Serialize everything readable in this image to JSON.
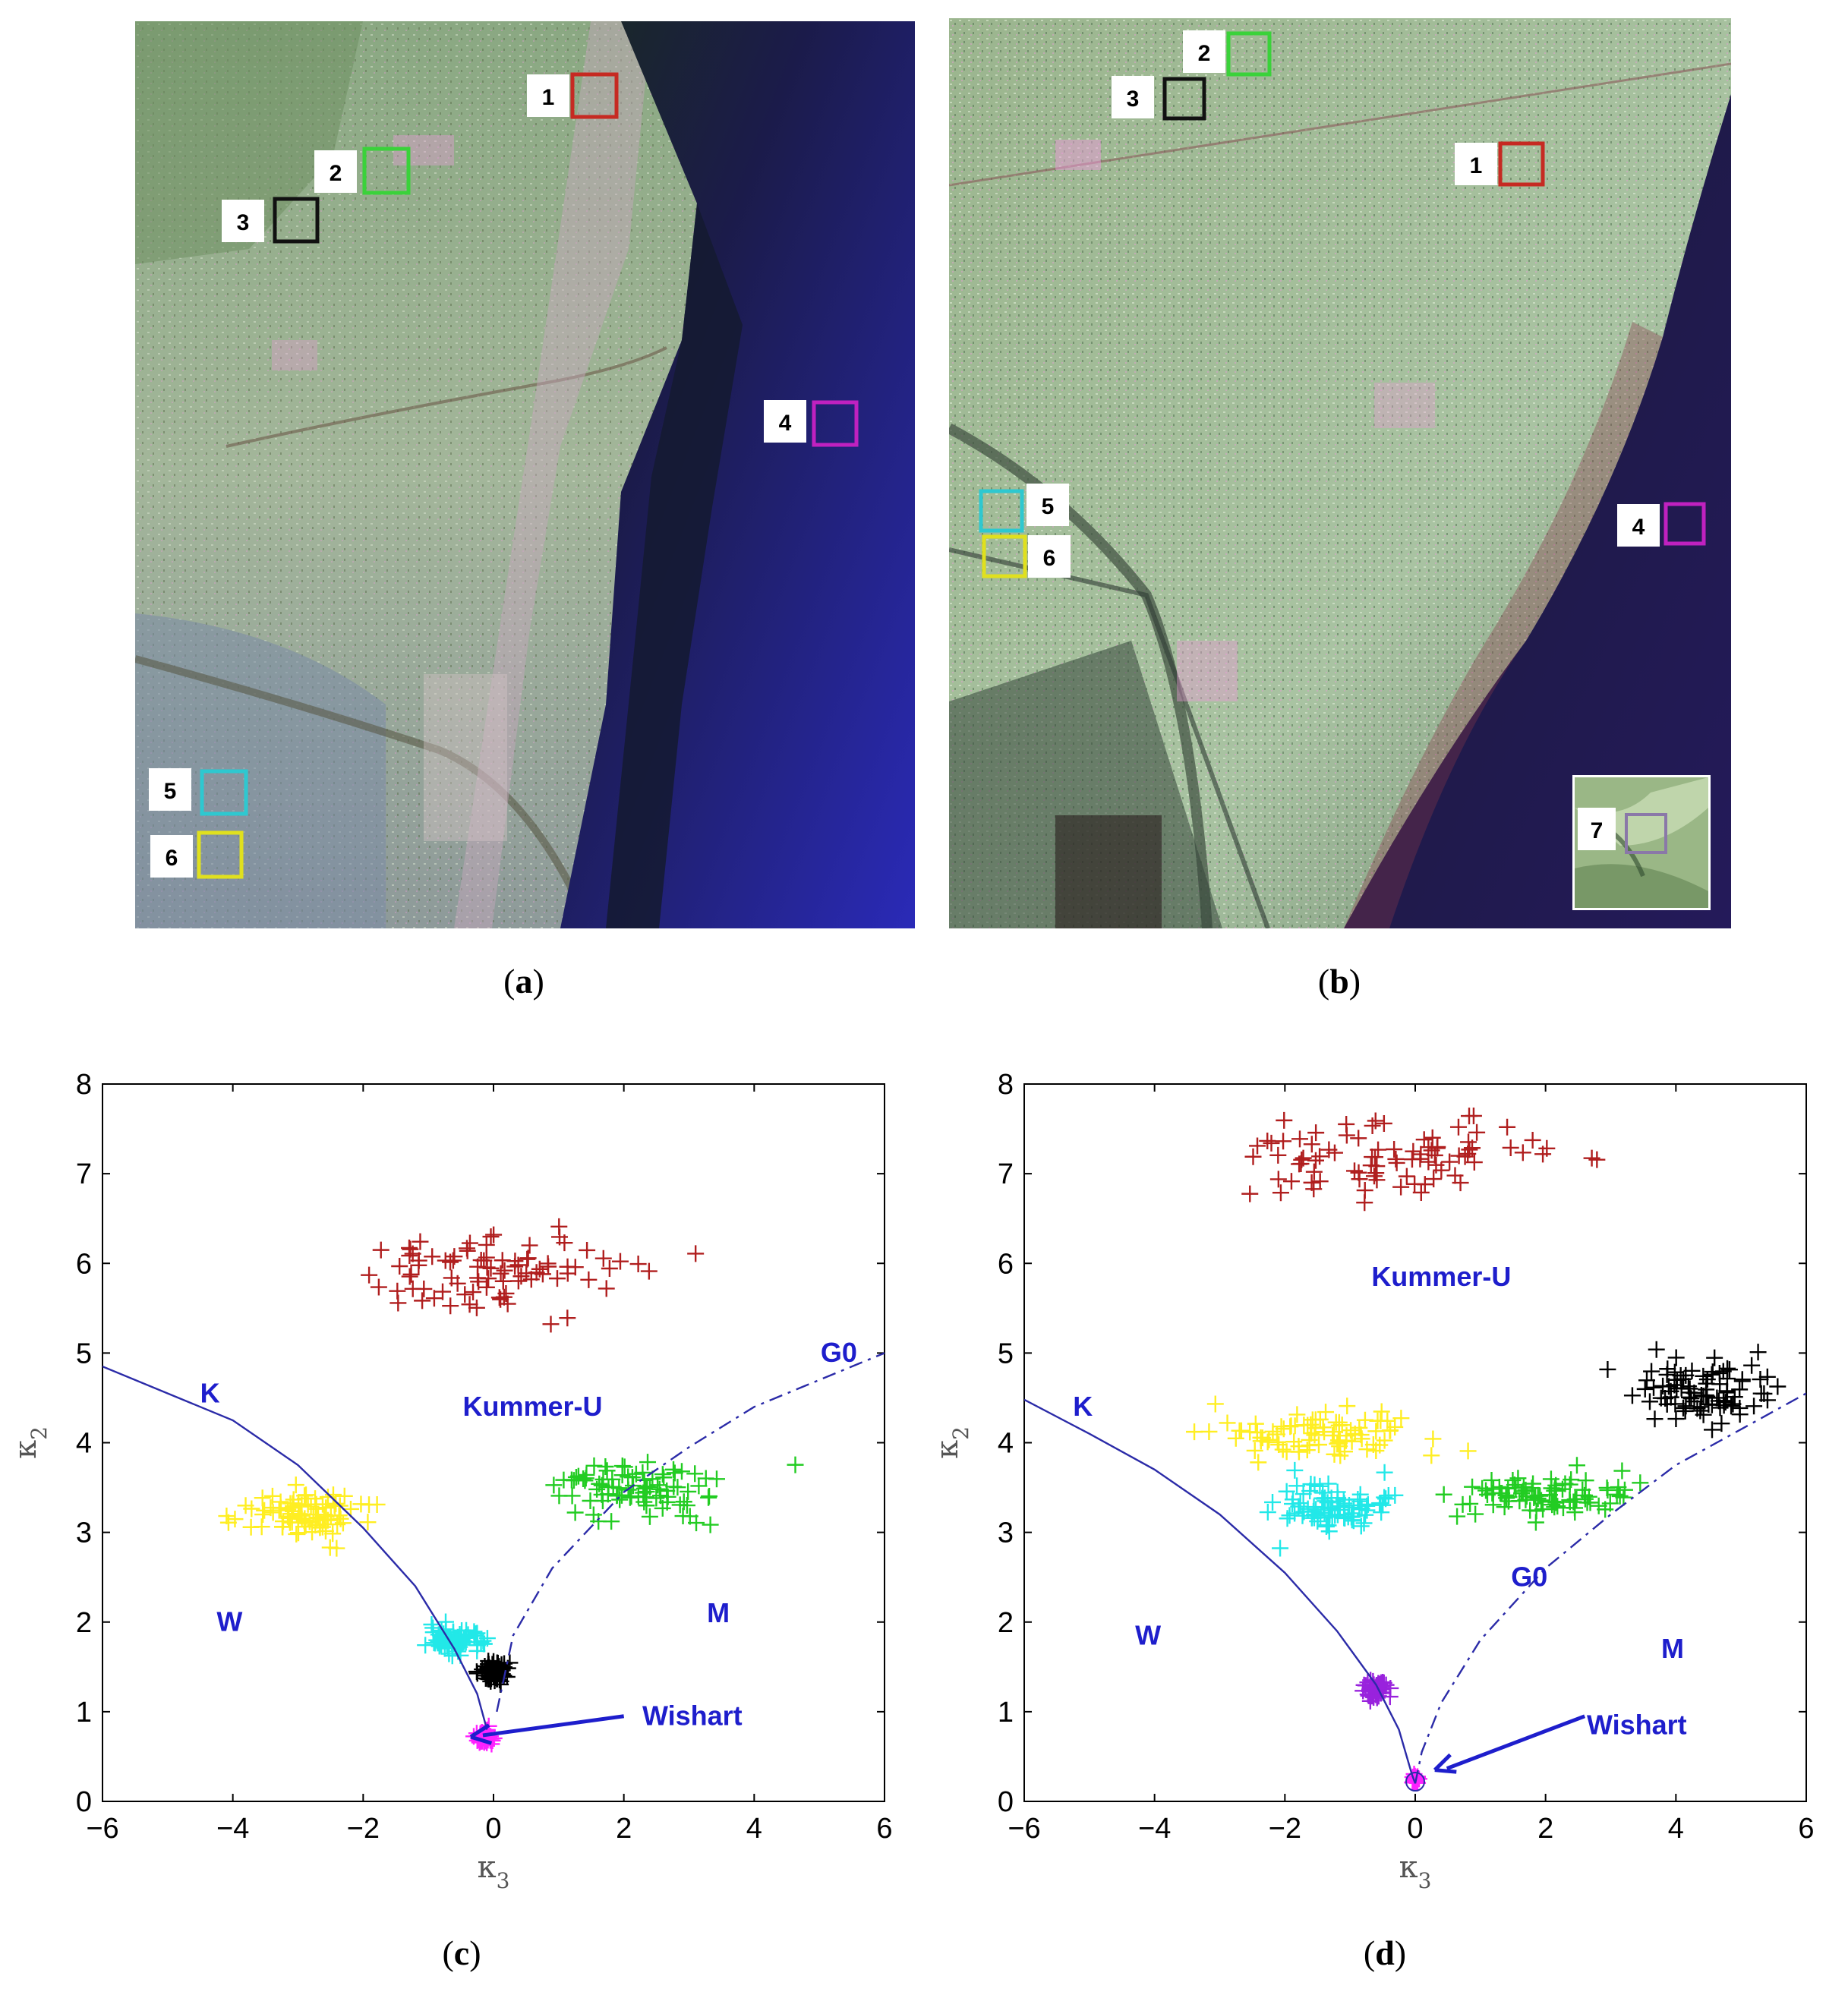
{
  "panels": {
    "a": {
      "caption": "a",
      "regions": [
        {
          "label": "1",
          "color": "#c62a22"
        },
        {
          "label": "2",
          "color": "#3ad23a"
        },
        {
          "label": "3",
          "color": "#111111"
        },
        {
          "label": "4",
          "color": "#c021c0"
        },
        {
          "label": "5",
          "color": "#2ec8d0"
        },
        {
          "label": "6",
          "color": "#e0e01e"
        }
      ]
    },
    "b": {
      "caption": "b",
      "regions": [
        {
          "label": "1",
          "color": "#c62a22"
        },
        {
          "label": "2",
          "color": "#3ad23a"
        },
        {
          "label": "3",
          "color": "#111111"
        },
        {
          "label": "4",
          "color": "#c021c0"
        },
        {
          "label": "5",
          "color": "#2ec8d0"
        },
        {
          "label": "6",
          "color": "#e0e01e"
        },
        {
          "label": "7",
          "color": "#8a78a8"
        }
      ]
    },
    "c": {
      "caption": "c"
    },
    "d": {
      "caption": "d"
    }
  },
  "chart_data": [
    {
      "type": "scatter",
      "panel": "c",
      "xlabel": "κ3",
      "ylabel": "κ2",
      "xlim": [
        -6,
        6
      ],
      "ylim": [
        0,
        8
      ],
      "xticks": [
        -6,
        -4,
        -2,
        0,
        2,
        4,
        6
      ],
      "yticks": [
        0,
        1,
        2,
        3,
        4,
        5,
        6,
        7,
        8
      ],
      "curve_labels": [
        "K",
        "G0",
        "Kummer-U",
        "W",
        "M",
        "Wishart"
      ],
      "clusters": [
        {
          "region": "1",
          "color": "#b01e1e",
          "center": [
            0.0,
            5.9
          ],
          "spread": [
            1.9,
            0.4
          ],
          "count": 90
        },
        {
          "region": "2",
          "color": "#22cc22",
          "center": [
            2.2,
            3.5
          ],
          "spread": [
            1.3,
            0.25
          ],
          "count": 90
        },
        {
          "region": "3",
          "color": "#000000",
          "center": [
            0.0,
            1.45
          ],
          "spread": [
            0.2,
            0.1
          ],
          "count": 70
        },
        {
          "region": "4",
          "color": "#ff22ff",
          "center": [
            -0.15,
            0.72
          ],
          "spread": [
            0.12,
            0.08
          ],
          "count": 50
        },
        {
          "region": "5",
          "color": "#22e8e8",
          "center": [
            -0.6,
            1.8
          ],
          "spread": [
            0.35,
            0.12
          ],
          "count": 80
        },
        {
          "region": "6",
          "color": "#ffee22",
          "center": [
            -2.9,
            3.2
          ],
          "spread": [
            0.9,
            0.22
          ],
          "count": 90
        }
      ]
    },
    {
      "type": "scatter",
      "panel": "d",
      "xlabel": "κ3",
      "ylabel": "κ2",
      "xlim": [
        -6,
        6
      ],
      "ylim": [
        0,
        8
      ],
      "xticks": [
        -6,
        -4,
        -2,
        0,
        2,
        4,
        6
      ],
      "yticks": [
        0,
        1,
        2,
        3,
        4,
        5,
        6,
        7,
        8
      ],
      "curve_labels": [
        "K",
        "G0",
        "Kummer-U",
        "W",
        "M",
        "Wishart"
      ],
      "clusters": [
        {
          "region": "1",
          "color": "#b01e1e",
          "center": [
            -0.5,
            7.2
          ],
          "spread": [
            2.2,
            0.35
          ],
          "count": 90
        },
        {
          "region": "2",
          "color": "#22cc22",
          "center": [
            2.0,
            3.4
          ],
          "spread": [
            1.3,
            0.22
          ],
          "count": 90
        },
        {
          "region": "3",
          "color": "#000000",
          "center": [
            4.5,
            4.55
          ],
          "spread": [
            1.0,
            0.25
          ],
          "count": 90
        },
        {
          "region": "4",
          "color": "#ff22ff",
          "center": [
            0.0,
            0.25
          ],
          "spread": [
            0.06,
            0.04
          ],
          "count": 25
        },
        {
          "region": "5",
          "color": "#22e8e8",
          "center": [
            -1.3,
            3.3
          ],
          "spread": [
            0.8,
            0.2
          ],
          "count": 90
        },
        {
          "region": "6",
          "color": "#ffee22",
          "center": [
            -1.5,
            4.1
          ],
          "spread": [
            1.2,
            0.22
          ],
          "count": 90
        },
        {
          "region": "7",
          "color": "#9922dd",
          "center": [
            -0.6,
            1.25
          ],
          "spread": [
            0.15,
            0.08
          ],
          "count": 60
        }
      ]
    }
  ]
}
